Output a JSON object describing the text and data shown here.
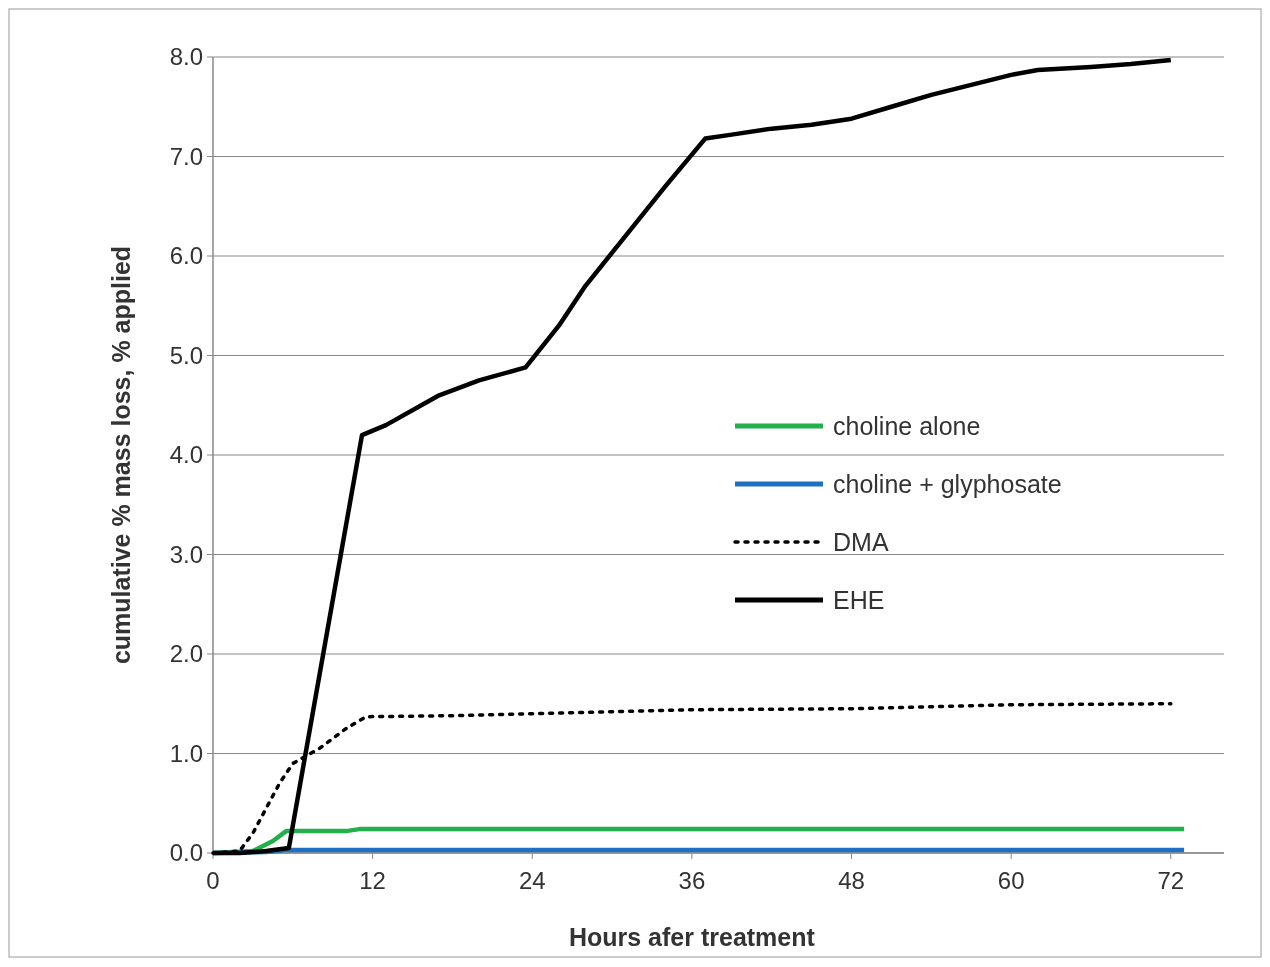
{
  "chart_data": {
    "type": "line",
    "xlabel": "Hours afer treatment",
    "ylabel": "cumulative % mass loss, % applied",
    "xlim": [
      0,
      76
    ],
    "xticks": [
      0,
      12,
      24,
      36,
      48,
      60,
      72
    ],
    "ylim": [
      0,
      8
    ],
    "yticks": [
      {
        "value": 0,
        "label": "0.0"
      },
      {
        "value": 1,
        "label": "1.0"
      },
      {
        "value": 2,
        "label": "2.0"
      },
      {
        "value": 3,
        "label": "3.0"
      },
      {
        "value": 4,
        "label": "4.0"
      },
      {
        "value": 5,
        "label": "5.0"
      },
      {
        "value": 6,
        "label": "6.0"
      },
      {
        "value": 7,
        "label": "7.0"
      },
      {
        "value": 8,
        "label": "8.0"
      }
    ],
    "grid": "y",
    "legend": "right",
    "series": [
      {
        "name": "choline alone",
        "color": "#22b04b",
        "line_style": "solid",
        "x": [
          0,
          3,
          4.5,
          5.5,
          10,
          11,
          73
        ],
        "values": [
          0,
          0.02,
          0.12,
          0.22,
          0.22,
          0.24,
          0.24
        ]
      },
      {
        "name": "choline + glyphosate",
        "color": "#1f6fc4",
        "line_style": "solid",
        "x": [
          0,
          4,
          5.5,
          73
        ],
        "values": [
          0,
          0.01,
          0.03,
          0.03
        ]
      },
      {
        "name": "DMA",
        "color": "#000000",
        "line_style": "dotted",
        "x": [
          0,
          2,
          3,
          5,
          6,
          8,
          10,
          11.5,
          18,
          24,
          30,
          36,
          48,
          54,
          60,
          72
        ],
        "values": [
          0,
          0.02,
          0.2,
          0.7,
          0.9,
          1.05,
          1.25,
          1.37,
          1.38,
          1.4,
          1.42,
          1.44,
          1.45,
          1.47,
          1.49,
          1.5
        ]
      },
      {
        "name": "EHE",
        "color": "#000000",
        "line_style": "solid",
        "x": [
          0,
          2,
          4,
          5.7,
          11.2,
          13,
          17,
          20,
          23.5,
          26,
          28,
          31,
          34,
          37,
          39,
          42,
          45,
          48,
          51,
          54,
          57,
          60,
          62,
          66,
          69,
          72
        ],
        "values": [
          0,
          0,
          0.02,
          0.05,
          4.2,
          4.3,
          4.6,
          4.75,
          4.88,
          5.3,
          5.7,
          6.2,
          6.7,
          7.18,
          7.22,
          7.28,
          7.32,
          7.38,
          7.5,
          7.62,
          7.72,
          7.82,
          7.87,
          7.9,
          7.93,
          7.97
        ]
      }
    ]
  }
}
